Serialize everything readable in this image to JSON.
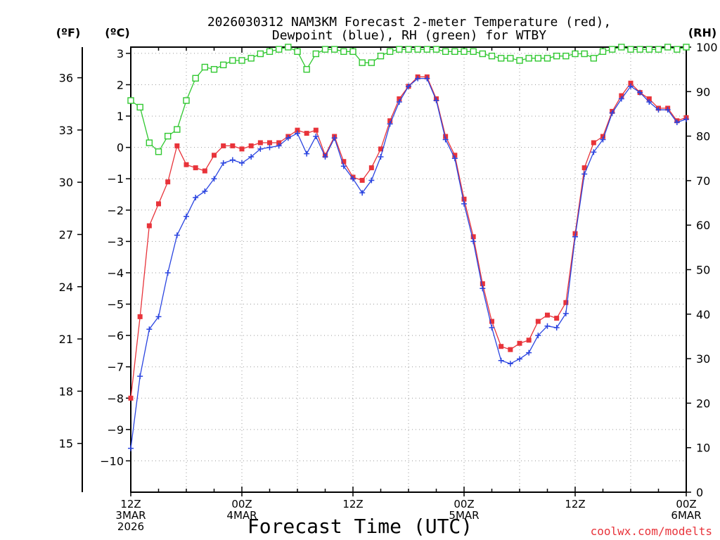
{
  "chart_data": {
    "type": "line",
    "title_line1": "2026030312 NAM3KM Forecast 2-meter Temperature (red),",
    "title_line2": "Dewpoint (blue), RH (green) for WTBY",
    "xlabel": "Forecast Time (UTC)",
    "watermark": "coolwx.com/modelts",
    "unit_labels": {
      "fahrenheit": "(ºF)",
      "celsius": "(ºC)",
      "rh": "(RH)"
    },
    "x_range_hours": [
      0,
      60
    ],
    "x_ticks": [
      {
        "hour": 0,
        "lines": [
          "12Z",
          "3MAR",
          "2026"
        ]
      },
      {
        "hour": 12,
        "lines": [
          "00Z",
          "4MAR"
        ]
      },
      {
        "hour": 24,
        "lines": [
          "12Z"
        ]
      },
      {
        "hour": 36,
        "lines": [
          "00Z",
          "5MAR"
        ]
      },
      {
        "hour": 48,
        "lines": [
          "12Z"
        ]
      },
      {
        "hour": 60,
        "lines": [
          "00Z",
          "6MAR"
        ]
      }
    ],
    "y_celsius": {
      "range": [
        -11,
        3.2
      ],
      "ticks": [
        "3",
        "2",
        "1",
        "0",
        "-1",
        "-2",
        "-3",
        "-4",
        "-5",
        "-6",
        "-7",
        "-8",
        "-9",
        "-10"
      ]
    },
    "y_fahrenheit": {
      "ticks": [
        "36",
        "33",
        "30",
        "27",
        "24",
        "21",
        "18",
        "15"
      ]
    },
    "y_rh": {
      "range": [
        0,
        100
      ],
      "ticks": [
        "100",
        "90",
        "80",
        "70",
        "60",
        "50",
        "40",
        "30",
        "20",
        "10",
        "0"
      ]
    },
    "series": [
      {
        "name": "Temperature",
        "unit": "C",
        "color": "#e8333a",
        "marker": "square",
        "values": [
          -8.0,
          -5.4,
          -2.5,
          -1.8,
          -1.1,
          0.05,
          -0.55,
          -0.65,
          -0.75,
          -0.25,
          0.05,
          0.05,
          -0.05,
          0.05,
          0.15,
          0.15,
          0.15,
          0.35,
          0.55,
          0.45,
          0.55,
          -0.25,
          0.35,
          -0.45,
          -0.95,
          -1.05,
          -0.65,
          -0.05,
          0.85,
          1.55,
          1.95,
          2.25,
          2.25,
          1.55,
          0.35,
          -0.25,
          -1.65,
          -2.85,
          -4.35,
          -5.55,
          -6.35,
          -6.45,
          -6.25,
          -6.15,
          -5.55,
          -5.35,
          -5.45,
          -4.95,
          -2.75,
          -0.65,
          0.15,
          0.35,
          1.15,
          1.65,
          2.05,
          1.75,
          1.55,
          1.25,
          1.25,
          0.85,
          0.95
        ]
      },
      {
        "name": "Dewpoint",
        "unit": "C",
        "color": "#2a44e0",
        "marker": "plus",
        "values": [
          -9.6,
          -7.3,
          -5.8,
          -5.4,
          -4.0,
          -2.8,
          -2.2,
          -1.6,
          -1.4,
          -1.0,
          -0.5,
          -0.4,
          -0.5,
          -0.3,
          -0.05,
          0.0,
          0.05,
          0.3,
          0.45,
          -0.2,
          0.35,
          -0.3,
          0.3,
          -0.6,
          -1.0,
          -1.45,
          -1.05,
          -0.3,
          0.75,
          1.45,
          1.95,
          2.2,
          2.2,
          1.5,
          0.25,
          -0.35,
          -1.8,
          -3.0,
          -4.5,
          -5.75,
          -6.8,
          -6.9,
          -6.75,
          -6.55,
          -6.0,
          -5.7,
          -5.75,
          -5.3,
          -2.85,
          -0.85,
          -0.15,
          0.25,
          1.1,
          1.55,
          1.95,
          1.75,
          1.45,
          1.2,
          1.2,
          0.8,
          0.9
        ]
      },
      {
        "name": "RH",
        "unit": "%",
        "color": "#30c830",
        "marker": "hollow-square",
        "values": [
          88,
          86.5,
          78.5,
          76.5,
          80,
          81.5,
          88,
          93,
          95.5,
          95,
          96,
          97,
          97,
          97.5,
          98.5,
          99,
          99.5,
          100,
          99,
          95,
          98.5,
          99.5,
          99.5,
          99,
          99,
          96.5,
          96.5,
          98,
          99,
          99.5,
          99.5,
          99.5,
          99.5,
          99.5,
          99,
          99,
          99,
          99,
          98.5,
          98,
          97.5,
          97.5,
          97,
          97.5,
          97.5,
          97.5,
          98,
          98,
          98.5,
          98.5,
          97.5,
          99,
          99.5,
          100,
          99.5,
          99.5,
          99.5,
          99.5,
          100,
          99.5,
          100
        ]
      }
    ]
  }
}
